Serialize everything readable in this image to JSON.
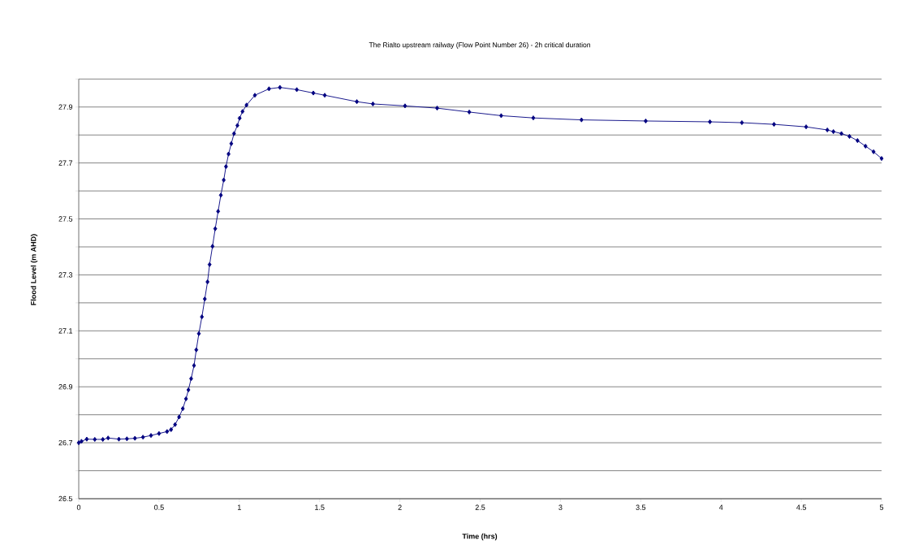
{
  "chart_data": {
    "type": "line",
    "title": "The Rialto upstream railway (Flow Point Number 26) - 2h critical duration",
    "xlabel": "Time (hrs)",
    "ylabel": "Flood Level (m AHD)",
    "x": [
      0,
      0.017,
      0.05,
      0.1,
      0.15,
      0.183,
      0.25,
      0.3,
      0.35,
      0.4,
      0.45,
      0.5,
      0.55,
      0.575,
      0.6,
      0.625,
      0.648,
      0.668,
      0.683,
      0.7,
      0.718,
      0.732,
      0.748,
      0.767,
      0.785,
      0.802,
      0.815,
      0.833,
      0.85,
      0.868,
      0.885,
      0.903,
      0.917,
      0.933,
      0.95,
      0.967,
      0.988,
      1.002,
      1.02,
      1.045,
      1.097,
      1.185,
      1.253,
      1.358,
      1.461,
      1.532,
      1.732,
      1.832,
      2.032,
      2.232,
      2.432,
      2.631,
      2.831,
      3.131,
      3.531,
      3.931,
      4.13,
      4.33,
      4.53,
      4.662,
      4.7,
      4.75,
      4.8,
      4.85,
      4.9,
      4.95,
      5.0
    ],
    "series": [
      {
        "color": "#000080",
        "values": [
          26.7,
          26.705,
          26.713,
          26.712,
          26.712,
          26.717,
          26.713,
          26.714,
          26.716,
          26.72,
          26.726,
          26.733,
          26.74,
          26.747,
          26.765,
          26.792,
          26.822,
          26.857,
          26.889,
          26.929,
          26.976,
          27.032,
          27.09,
          27.15,
          27.214,
          27.275,
          27.337,
          27.402,
          27.465,
          27.527,
          27.585,
          27.639,
          27.687,
          27.732,
          27.769,
          27.805,
          27.834,
          27.86,
          27.884,
          27.907,
          27.942,
          27.965,
          27.97,
          27.962,
          27.95,
          27.942,
          27.919,
          27.911,
          27.904,
          27.896,
          27.882,
          27.869,
          27.861,
          27.854,
          27.85,
          27.847,
          27.844,
          27.838,
          27.829,
          27.818,
          27.812,
          27.805,
          27.795,
          27.78,
          27.76,
          27.74,
          27.716
        ]
      }
    ],
    "xlim": [
      0,
      5
    ],
    "ylim": [
      26.5,
      28.0
    ],
    "xticks": [
      0,
      0.5,
      1,
      1.5,
      2,
      2.5,
      3,
      3.5,
      4,
      4.5,
      5
    ],
    "yticks": [
      26.5,
      {
        "value": 26.6,
        "label": null
      },
      26.7,
      {
        "value": 26.8,
        "label": null
      },
      26.9,
      {
        "value": 27.0,
        "label": null
      },
      27.1,
      {
        "value": 27.2,
        "label": null
      },
      27.3,
      {
        "value": 27.4,
        "label": null
      },
      27.5,
      {
        "value": 27.6,
        "label": null
      },
      27.7,
      {
        "value": 27.8,
        "label": null
      },
      27.9,
      {
        "value": 28.0,
        "label": null
      }
    ],
    "grid": "y",
    "marker": "diamond",
    "line_style": "solid"
  }
}
